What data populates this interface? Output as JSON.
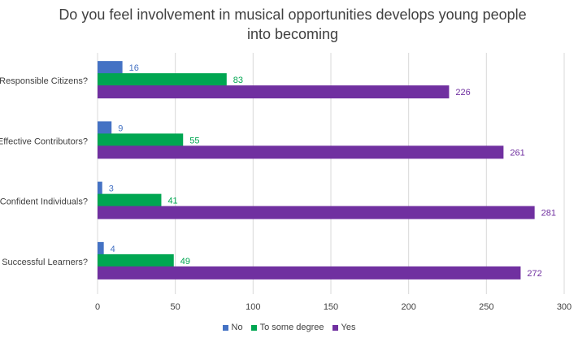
{
  "chart_data": {
    "type": "bar",
    "orientation": "horizontal",
    "title": "Do you feel involvement in musical opportunities develops young people\ninto becoming",
    "categories": [
      "Responsible Citizens?",
      "Effective Contributors?",
      "Confident Individuals?",
      "Successful Learners?"
    ],
    "series": [
      {
        "name": "No",
        "color": "#4472C4",
        "values": [
          16,
          9,
          3,
          4
        ]
      },
      {
        "name": "To some degree",
        "color": "#00A651",
        "values": [
          83,
          55,
          41,
          49
        ]
      },
      {
        "name": "Yes",
        "color": "#7030A0",
        "values": [
          226,
          261,
          281,
          272
        ]
      }
    ],
    "xlim": [
      0,
      300
    ],
    "xticks": [
      "0",
      "50",
      "100",
      "150",
      "200",
      "250",
      "300"
    ],
    "xlabel": "",
    "ylabel": "",
    "grid": "vertical",
    "legend": "bottom-center",
    "data_labels": true
  }
}
